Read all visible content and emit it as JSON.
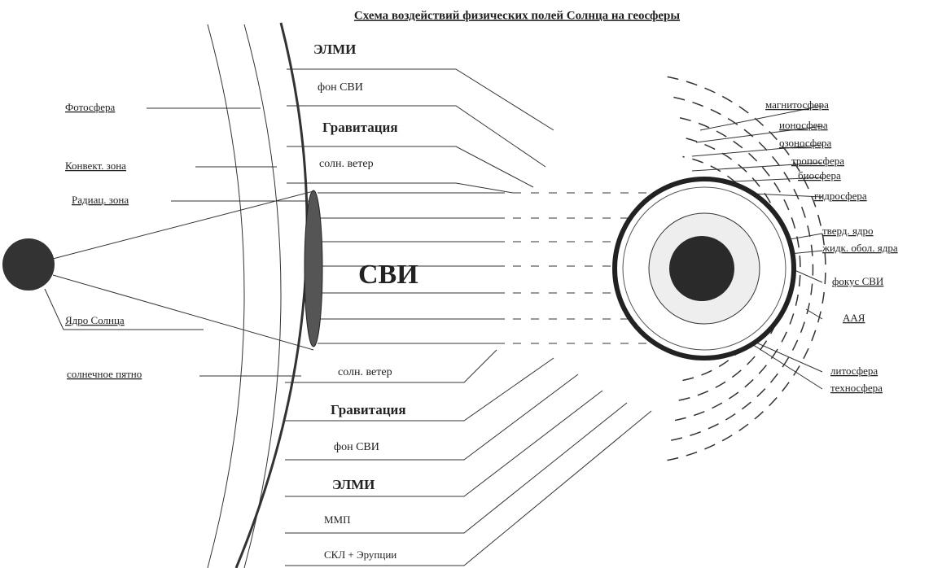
{
  "title": "Схема воздействий физических полей Солнца на геосферы",
  "sun_labels": [
    "Фотосфера",
    "Конвект. зона",
    "Радиац. зона",
    "Ядро Солнца",
    "солнечное пятно"
  ],
  "fields_top": [
    "ЭЛМИ",
    "фон СВИ",
    "Гравитация",
    "солн. ветер"
  ],
  "center_label": "СВИ",
  "fields_bottom": [
    "солн. ветер",
    "Гравитация",
    "фон СВИ",
    "ЭЛМИ",
    "ММП",
    "СКЛ + Эрупции"
  ],
  "earth_labels": [
    "магнитосфера",
    "ионосфера",
    "озоносфера",
    "тропосфера",
    "биосфера",
    "гидросфера",
    "тверд. ядро",
    "жидк. обол. ядра",
    "фокус СВИ",
    "ААЯ",
    "литосфера",
    "техносфера"
  ]
}
